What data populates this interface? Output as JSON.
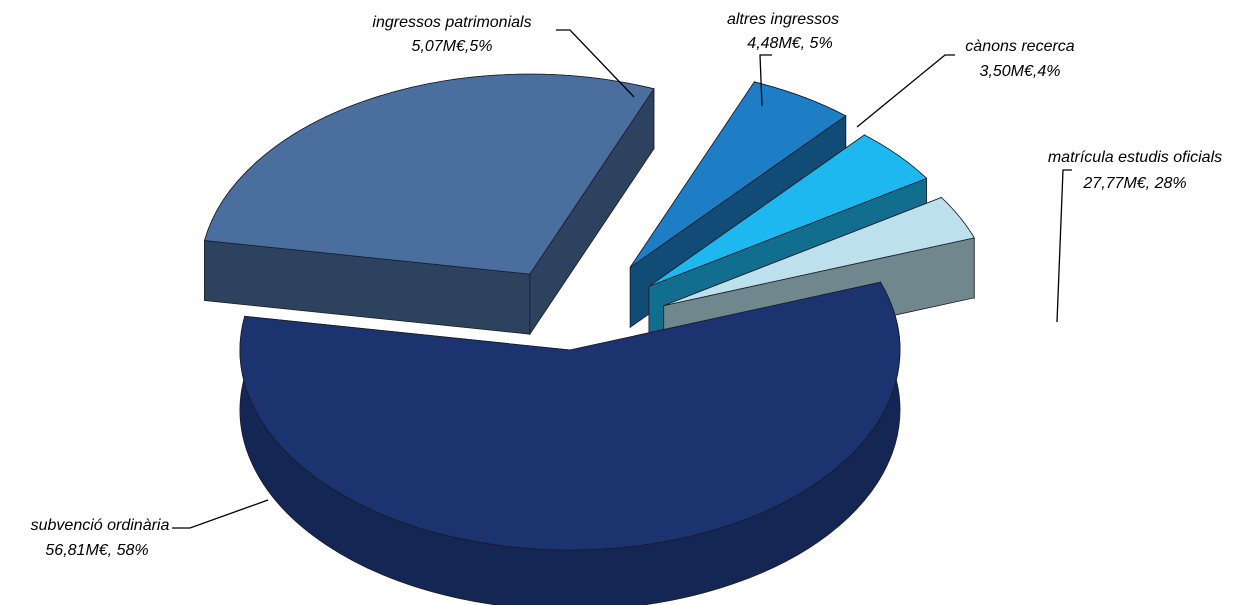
{
  "chart_data": {
    "type": "pie",
    "three_d": true,
    "exploded": true,
    "unit": "M€",
    "slices": [
      {
        "label": "subvenció ordinària",
        "value": 56.81,
        "percent": 58,
        "value_text": "56,81M€, 58%",
        "color": "#1b336f"
      },
      {
        "label": "matrícula estudis oficials",
        "value": 27.77,
        "percent": 28,
        "value_text": "27,77M€, 28%",
        "color": "#4a6e9e"
      },
      {
        "label": "ingressos patrimonials",
        "value": 5.07,
        "percent": 5,
        "value_text": "5,07M€,5%",
        "color": "#1d7ec6"
      },
      {
        "label": "altres ingressos",
        "value": 4.48,
        "percent": 5,
        "value_text": "4,48M€, 5%",
        "color": "#1cb8ef"
      },
      {
        "label": "cànons recerca",
        "value": 3.5,
        "percent": 4,
        "value_text": "3,50M€,4%",
        "color": "#bde1ec"
      }
    ]
  }
}
